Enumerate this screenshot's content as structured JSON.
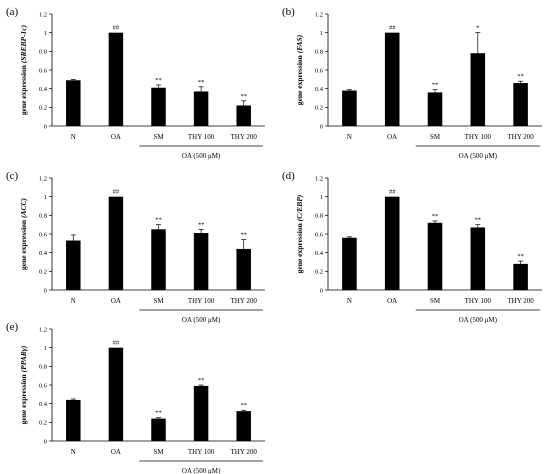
{
  "chart_data": [
    {
      "type": "bar",
      "panel_label": "(a)",
      "ylabel": "gene expression",
      "ylabel_gene": "(SREBP-1c)",
      "categories": [
        "N",
        "OA",
        "SM",
        "THY 100",
        "THY 200"
      ],
      "values": [
        0.49,
        1.0,
        0.41,
        0.37,
        0.22
      ],
      "errors": [
        0.01,
        0.0,
        0.03,
        0.05,
        0.05
      ],
      "significance": [
        "",
        "##",
        "**",
        "**",
        "**"
      ],
      "ylim": [
        0,
        1.2
      ],
      "yticks": [
        "0",
        "0.2",
        "0.4",
        "0.6",
        "0.8",
        "1",
        "1.2"
      ],
      "group_label": "OA (500 μM)",
      "grid": false
    },
    {
      "type": "bar",
      "panel_label": "(b)",
      "ylabel": "gene expression",
      "ylabel_gene": "(FAS)",
      "categories": [
        "N",
        "OA",
        "SM",
        "THY 100",
        "THY 200"
      ],
      "values": [
        0.38,
        1.0,
        0.36,
        0.78,
        0.46
      ],
      "errors": [
        0.01,
        0.0,
        0.03,
        0.22,
        0.02
      ],
      "significance": [
        "",
        "##",
        "**",
        "*",
        "**"
      ],
      "ylim": [
        0,
        1.2
      ],
      "yticks": [
        "0",
        "0.2",
        "0.4",
        "0.6",
        "0.8",
        "1",
        "1.2"
      ],
      "group_label": "OA (500 μM)",
      "grid": false
    },
    {
      "type": "bar",
      "panel_label": "(c)",
      "ylabel": "gene expression",
      "ylabel_gene": "(ACC)",
      "categories": [
        "N",
        "OA",
        "SM",
        "THY 100",
        "THY 200"
      ],
      "values": [
        0.53,
        1.0,
        0.65,
        0.61,
        0.44
      ],
      "errors": [
        0.06,
        0.0,
        0.05,
        0.04,
        0.1
      ],
      "significance": [
        "",
        "##",
        "**",
        "**",
        "**"
      ],
      "ylim": [
        0,
        1.2
      ],
      "yticks": [
        "0",
        "0.2",
        "0.4",
        "0.6",
        "0.8",
        "1",
        "1.2"
      ],
      "group_label": "OA (500 μM)",
      "grid": false
    },
    {
      "type": "bar",
      "panel_label": "(d)",
      "ylabel": "gene expression",
      "ylabel_gene": "(C/EBP)",
      "categories": [
        "N",
        "OA",
        "SM",
        "THY 100",
        "THY 200"
      ],
      "values": [
        0.56,
        1.0,
        0.72,
        0.67,
        0.28
      ],
      "errors": [
        0.01,
        0.0,
        0.02,
        0.03,
        0.03
      ],
      "significance": [
        "",
        "##",
        "**",
        "**",
        "**"
      ],
      "ylim": [
        0,
        1.2
      ],
      "yticks": [
        "0",
        "0.2",
        "0.4",
        "0.6",
        "0.8",
        "1",
        "1.2"
      ],
      "group_label": "OA (500 μM)",
      "grid": false
    },
    {
      "type": "bar",
      "panel_label": "(e)",
      "ylabel": "gene expression",
      "ylabel_gene": "(PPARγ)",
      "categories": [
        "N",
        "OA",
        "SM",
        "THY 100",
        "THY 200"
      ],
      "values": [
        0.44,
        1.0,
        0.24,
        0.59,
        0.32
      ],
      "errors": [
        0.01,
        0.0,
        0.01,
        0.01,
        0.01
      ],
      "significance": [
        "",
        "##",
        "**",
        "**",
        "**"
      ],
      "ylim": [
        0,
        1.2
      ],
      "yticks": [
        "0",
        "0.2",
        "0.4",
        "0.6",
        "0.8",
        "1",
        "1.2"
      ],
      "group_label": "OA (500 μM)",
      "grid": false
    }
  ]
}
